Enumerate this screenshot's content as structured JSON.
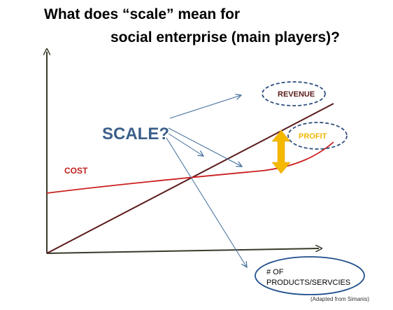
{
  "title": {
    "line1": "What does “scale” mean for",
    "line2": "social enterprise (main players)?"
  },
  "labels": {
    "scale": "SCALE?",
    "cost": "COST",
    "revenue": "REVENUE",
    "profit": "PROFIT",
    "products_line1": "# OF",
    "products_line2": "PRODUCTS/SERVCIES",
    "source": "(Adapted from Simanis)"
  },
  "colors": {
    "axis": "#3a3a2a",
    "revenue_line": "#5a1a1a",
    "cost_line": "#cc1f1f",
    "scale_text": "#3b5f8a",
    "arrow": "#3f6c9a",
    "cost_label": "#c0201e",
    "revenue_label": "#5a1a1a",
    "profit_label": "#f2b705",
    "profit_arrow": "#f5b800",
    "dashed_ellipse": "#2f4f7f",
    "products_ellipse": "#1f4e8c"
  }
}
